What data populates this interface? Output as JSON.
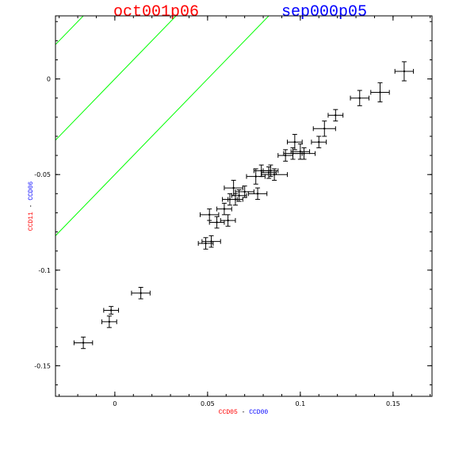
{
  "chart_data": {
    "type": "scatter",
    "title_left": "oct001p06",
    "title_right": "sep000p05",
    "title_left_color": "#ff0000",
    "title_right_color": "#0000ff",
    "xlabel_parts": [
      {
        "text": "CCD05",
        "color": "#ff0000"
      },
      {
        "text": " - ",
        "color": "#000000"
      },
      {
        "text": "CCD00",
        "color": "#0000ff"
      }
    ],
    "ylabel_parts": [
      {
        "text": "CCD11",
        "color": "#ff0000"
      },
      {
        "text": " - ",
        "color": "#000000"
      },
      {
        "text": "CCD06",
        "color": "#0000ff"
      }
    ],
    "xlim": [
      -0.032,
      0.171
    ],
    "ylim": [
      -0.166,
      0.033
    ],
    "x_ticks": [
      0,
      0.05,
      0.1,
      0.15
    ],
    "x_tick_labels": [
      "0",
      "0.05",
      "0.1",
      "0.15"
    ],
    "y_ticks": [
      0,
      -0.05,
      -0.1,
      -0.15
    ],
    "y_tick_labels": [
      "0",
      "-0.05",
      "-0.1",
      "-0.15"
    ],
    "grid": false,
    "reference_lines": {
      "color": "#00ff00",
      "slope": 1,
      "intercepts": [
        0.05,
        0.0,
        -0.05
      ]
    },
    "points": [
      {
        "x": -0.017,
        "y": -0.138,
        "xerr": 0.005,
        "yerr": 0.003
      },
      {
        "x": -0.003,
        "y": -0.127,
        "xerr": 0.004,
        "yerr": 0.003
      },
      {
        "x": -0.002,
        "y": -0.121,
        "xerr": 0.004,
        "yerr": 0.002
      },
      {
        "x": 0.014,
        "y": -0.112,
        "xerr": 0.005,
        "yerr": 0.003
      },
      {
        "x": 0.049,
        "y": -0.086,
        "xerr": 0.004,
        "yerr": 0.003
      },
      {
        "x": 0.052,
        "y": -0.085,
        "xerr": 0.005,
        "yerr": 0.003
      },
      {
        "x": 0.051,
        "y": -0.071,
        "xerr": 0.005,
        "yerr": 0.003
      },
      {
        "x": 0.055,
        "y": -0.075,
        "xerr": 0.004,
        "yerr": 0.003
      },
      {
        "x": 0.059,
        "y": -0.068,
        "xerr": 0.004,
        "yerr": 0.003
      },
      {
        "x": 0.061,
        "y": -0.074,
        "xerr": 0.004,
        "yerr": 0.003
      },
      {
        "x": 0.062,
        "y": -0.063,
        "xerr": 0.004,
        "yerr": 0.003
      },
      {
        "x": 0.064,
        "y": -0.057,
        "xerr": 0.005,
        "yerr": 0.004
      },
      {
        "x": 0.065,
        "y": -0.063,
        "xerr": 0.004,
        "yerr": 0.003
      },
      {
        "x": 0.067,
        "y": -0.061,
        "xerr": 0.004,
        "yerr": 0.003
      },
      {
        "x": 0.07,
        "y": -0.059,
        "xerr": 0.005,
        "yerr": 0.003
      },
      {
        "x": 0.077,
        "y": -0.06,
        "xerr": 0.005,
        "yerr": 0.003
      },
      {
        "x": 0.076,
        "y": -0.051,
        "xerr": 0.005,
        "yerr": 0.004
      },
      {
        "x": 0.079,
        "y": -0.048,
        "xerr": 0.004,
        "yerr": 0.003
      },
      {
        "x": 0.083,
        "y": -0.049,
        "xerr": 0.004,
        "yerr": 0.003
      },
      {
        "x": 0.084,
        "y": -0.048,
        "xerr": 0.004,
        "yerr": 0.003
      },
      {
        "x": 0.086,
        "y": -0.05,
        "xerr": 0.007,
        "yerr": 0.003
      },
      {
        "x": 0.092,
        "y": -0.04,
        "xerr": 0.004,
        "yerr": 0.003
      },
      {
        "x": 0.096,
        "y": -0.039,
        "xerr": 0.005,
        "yerr": 0.003
      },
      {
        "x": 0.097,
        "y": -0.033,
        "xerr": 0.004,
        "yerr": 0.004
      },
      {
        "x": 0.1,
        "y": -0.038,
        "xerr": 0.005,
        "yerr": 0.004
      },
      {
        "x": 0.102,
        "y": -0.039,
        "xerr": 0.006,
        "yerr": 0.003
      },
      {
        "x": 0.11,
        "y": -0.033,
        "xerr": 0.004,
        "yerr": 0.003
      },
      {
        "x": 0.113,
        "y": -0.026,
        "xerr": 0.006,
        "yerr": 0.004
      },
      {
        "x": 0.119,
        "y": -0.019,
        "xerr": 0.004,
        "yerr": 0.003
      },
      {
        "x": 0.132,
        "y": -0.01,
        "xerr": 0.005,
        "yerr": 0.004
      },
      {
        "x": 0.143,
        "y": -0.007,
        "xerr": 0.005,
        "yerr": 0.005
      },
      {
        "x": 0.156,
        "y": 0.004,
        "xerr": 0.005,
        "yerr": 0.005
      }
    ]
  }
}
